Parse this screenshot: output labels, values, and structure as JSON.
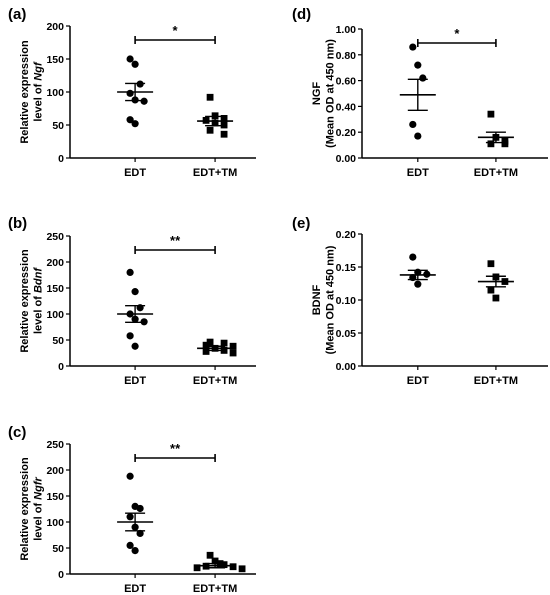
{
  "chart_data": [
    {
      "panel": "(a)",
      "type": "scatter",
      "ylabel_lines": [
        "Relative expression",
        "level of "
      ],
      "ylabel_gene": "Ngf",
      "ylim": [
        0,
        200
      ],
      "yticks": [
        "0",
        "50",
        "100",
        "150",
        "200"
      ],
      "categories": [
        "EDT",
        "EDT+TM"
      ],
      "marker_shapes": [
        "circle",
        "square"
      ],
      "series": [
        {
          "values": [
            150,
            142,
            112,
            98,
            88,
            86,
            58,
            52
          ],
          "mean": 100,
          "sem_low": 87,
          "sem_high": 113
        },
        {
          "values": [
            92,
            64,
            60,
            57,
            53,
            50,
            42,
            36
          ],
          "mean": 56,
          "sem_low": 49,
          "sem_high": 63
        }
      ],
      "significance": "*"
    },
    {
      "panel": "(b)",
      "type": "scatter",
      "ylabel_lines": [
        "Relative expression",
        "level of "
      ],
      "ylabel_gene": "Bdnf",
      "ylim": [
        0,
        250
      ],
      "yticks": [
        "0",
        "50",
        "100",
        "150",
        "200",
        "250"
      ],
      "categories": [
        "EDT",
        "EDT+TM"
      ],
      "marker_shapes": [
        "circle",
        "square"
      ],
      "series": [
        {
          "values": [
            180,
            143,
            112,
            100,
            90,
            85,
            58,
            38
          ],
          "mean": 100,
          "sem_low": 84,
          "sem_high": 116
        },
        {
          "values": [
            46,
            44,
            40,
            38,
            34,
            30,
            28,
            25
          ],
          "mean": 34,
          "sem_low": 30,
          "sem_high": 38
        }
      ],
      "significance": "**"
    },
    {
      "panel": "(c)",
      "type": "scatter",
      "ylabel_lines": [
        "Relative expression",
        "level of "
      ],
      "ylabel_gene": "Ngfr",
      "ylim": [
        0,
        250
      ],
      "yticks": [
        "0",
        "50",
        "100",
        "150",
        "200",
        "250"
      ],
      "categories": [
        "EDT",
        "EDT+TM"
      ],
      "marker_shapes": [
        "circle",
        "square"
      ],
      "series": [
        {
          "values": [
            188,
            130,
            126,
            110,
            90,
            78,
            55,
            45
          ],
          "mean": 100,
          "sem_low": 83,
          "sem_high": 117
        },
        {
          "values": [
            36,
            25,
            20,
            18,
            15,
            14,
            12,
            10
          ],
          "mean": 16,
          "sem_low": 12,
          "sem_high": 20
        }
      ],
      "significance": "**"
    },
    {
      "panel": "(d)",
      "type": "scatter",
      "ylabel_lines": [
        "NGF",
        "(Mean OD at 450 nm)"
      ],
      "ylabel_gene": "",
      "ylim": [
        0,
        1.0
      ],
      "yticks": [
        "0.00",
        "0.20",
        "0.40",
        "0.60",
        "0.80",
        "1.00"
      ],
      "categories": [
        "EDT",
        "EDT+TM"
      ],
      "marker_shapes": [
        "circle",
        "square"
      ],
      "series": [
        {
          "values": [
            0.86,
            0.72,
            0.62,
            0.26,
            0.17
          ],
          "mean": 0.49,
          "sem_low": 0.37,
          "sem_high": 0.61
        },
        {
          "values": [
            0.34,
            0.16,
            0.13,
            0.11,
            0.11
          ],
          "mean": 0.16,
          "sem_low": 0.12,
          "sem_high": 0.2
        }
      ],
      "significance": "*"
    },
    {
      "panel": "(e)",
      "type": "scatter",
      "ylabel_lines": [
        "BDNF",
        "(Mean OD at 450 nm)"
      ],
      "ylabel_gene": "",
      "ylim": [
        0,
        0.2
      ],
      "yticks": [
        "0.00",
        "0.05",
        "0.10",
        "0.15",
        "0.20"
      ],
      "categories": [
        "EDT",
        "EDT+TM"
      ],
      "marker_shapes": [
        "circle",
        "square"
      ],
      "series": [
        {
          "values": [
            0.165,
            0.142,
            0.139,
            0.134,
            0.124
          ],
          "mean": 0.138,
          "sem_low": 0.131,
          "sem_high": 0.145
        },
        {
          "values": [
            0.155,
            0.135,
            0.128,
            0.115,
            0.103
          ],
          "mean": 0.128,
          "sem_low": 0.12,
          "sem_high": 0.136
        }
      ],
      "significance": ""
    }
  ]
}
